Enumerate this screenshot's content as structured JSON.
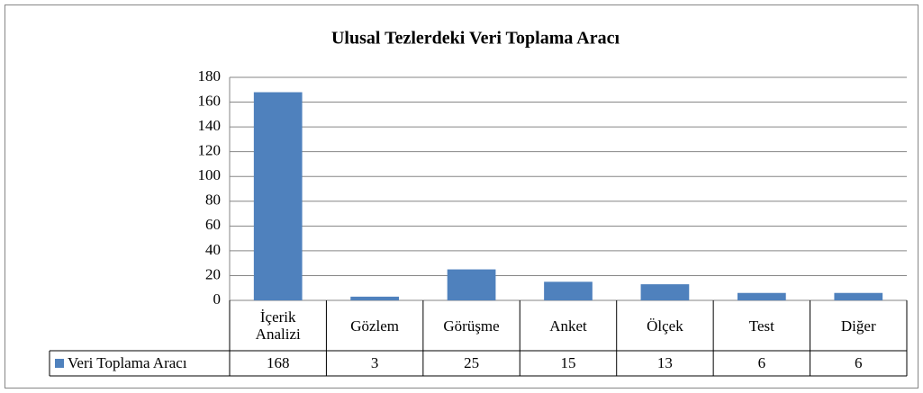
{
  "chart_data": {
    "type": "bar",
    "title": "Ulusal Tezlerdeki Veri Toplama Aracı",
    "categories": [
      "İçerik Analizi",
      "Gözlem",
      "Görüşme",
      "Anket",
      "Ölçek",
      "Test",
      "Diğer"
    ],
    "series": [
      {
        "name": "Veri Toplama Aracı",
        "color": "#4f81bd",
        "values": [
          168,
          3,
          25,
          15,
          13,
          6,
          6
        ]
      }
    ],
    "ylim": [
      0,
      180
    ],
    "yticks": [
      0,
      20,
      40,
      60,
      80,
      100,
      120,
      140,
      160,
      180
    ],
    "grid": true
  }
}
